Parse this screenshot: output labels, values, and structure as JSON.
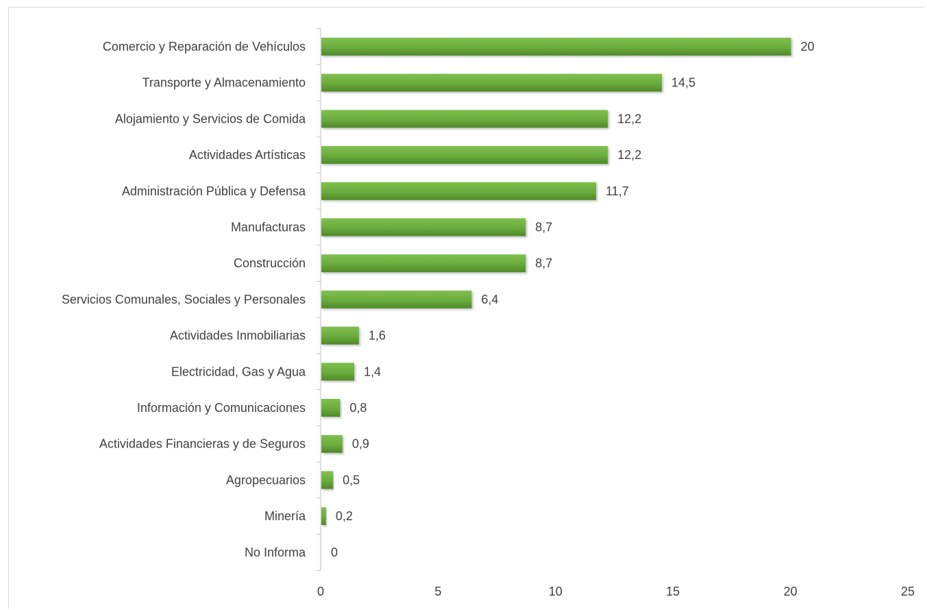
{
  "chart_data": {
    "type": "bar",
    "orientation": "horizontal",
    "categories": [
      "Comercio y Reparación de Vehículos",
      "Transporte y Almacenamiento",
      "Alojamiento y Servicios de Comida",
      "Actividades Artísticas",
      "Administración Pública y Defensa",
      "Manufacturas",
      "Construcción",
      "Servicios Comunales, Sociales y Personales",
      "Actividades Inmobiliarias",
      "Electricidad, Gas y Agua",
      "Información y Comunicaciones",
      "Actividades Financieras y de Seguros",
      "Agropecuarios",
      "Minería",
      "No Informa"
    ],
    "values": [
      20,
      14.5,
      12.2,
      12.2,
      11.7,
      8.7,
      8.7,
      6.4,
      1.6,
      1.4,
      0.8,
      0.9,
      0.5,
      0.2,
      0
    ],
    "value_labels": [
      "20",
      "14,5",
      "12,2",
      "12,2",
      "11,7",
      "8,7",
      "8,7",
      "6,4",
      "1,6",
      "1,4",
      "0,8",
      "0,9",
      "0,5",
      "0,2",
      "0"
    ],
    "xlim": [
      0,
      25
    ],
    "x_ticks": [
      0,
      5,
      10,
      15,
      20,
      25
    ],
    "x_tick_labels": [
      "0",
      "5",
      "10",
      "15",
      "20",
      "25"
    ],
    "title": "",
    "xlabel": "",
    "ylabel": "",
    "grid": false,
    "legend": "none",
    "bar_color": "#6aab3d"
  }
}
